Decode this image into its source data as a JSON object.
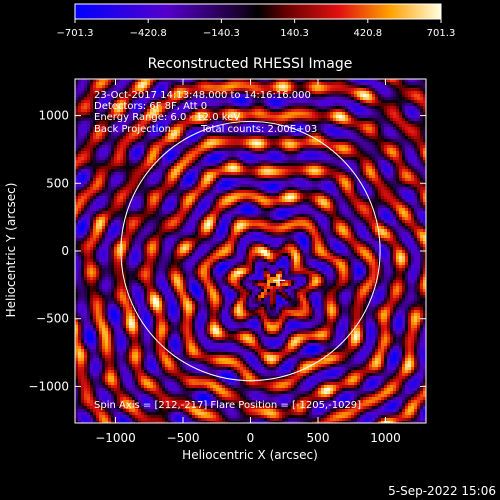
{
  "chart_data": {
    "type": "heatmap",
    "title": "Reconstructed RHESSI Image",
    "xlabel": "Heliocentric X (arcsec)",
    "ylabel": "Heliocentric Y (arcsec)",
    "xlim": [
      -1300,
      1300
    ],
    "ylim": [
      -1270,
      1270
    ],
    "xticks": [
      -1000,
      -500,
      0,
      500,
      1000
    ],
    "yticks": [
      -1000,
      -500,
      0,
      500,
      1000
    ],
    "xtick_labels": [
      "−1000",
      "−500",
      "0",
      "500",
      "1000"
    ],
    "ytick_labels": [
      "−1000",
      "−500",
      "0",
      "500",
      "1000"
    ],
    "colorbar": {
      "min": -701.3,
      "max": 701.3,
      "ticks": [
        -701.3,
        -420.8,
        -140.3,
        140.3,
        420.8,
        701.3
      ],
      "tick_labels": [
        "−701.3",
        "−420.8",
        "−140.3",
        "140.3",
        "420.8",
        "701.3"
      ]
    },
    "annotations": [
      "23-Oct-2017 14:13:48.000 to 14:16:16.000",
      "Detectors: 6F 8F, Att 0",
      "Energy Range: 6.0 - 12.0 keV",
      "Back Projection",
      "Total counts: 2.00E+03"
    ],
    "footer_annotation": "Spin Axis = [212,-217]  Flare Position = [-1205,-1029]",
    "solar_disk": {
      "center": [
        0,
        0
      ],
      "radius": 960
    },
    "spin_axis": [
      212,
      -217
    ],
    "timestamp": "5-Sep-2022 15:06"
  }
}
